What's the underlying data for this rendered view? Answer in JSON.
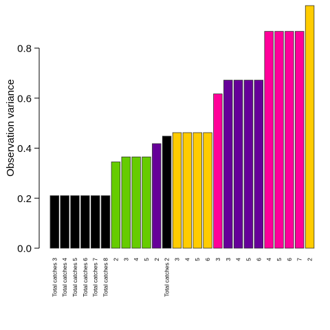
{
  "chart_data": {
    "type": "bar",
    "title": "",
    "xlabel": "",
    "ylabel": "Observation variance",
    "ylim": [
      0,
      0.97
    ],
    "yticks": [
      "0.0",
      "0.2",
      "0.4",
      "0.6",
      "0.8"
    ],
    "ytick_values": [
      0,
      0.2,
      0.4,
      0.6,
      0.8
    ],
    "grid": false,
    "categories": [
      "Total catches 3",
      "Total catches 4",
      "Total catches 5",
      "Total catches 6",
      "Total catches 7",
      "Total catches 8",
      "2",
      "3",
      "4",
      "5",
      "2",
      "Total catches 2",
      "3",
      "4",
      "5",
      "6",
      "3",
      "3",
      "4",
      "5",
      "6",
      "4",
      "5",
      "6",
      "7",
      "2"
    ],
    "values": [
      0.21,
      0.21,
      0.21,
      0.21,
      0.21,
      0.21,
      0.345,
      0.365,
      0.365,
      0.365,
      0.418,
      0.448,
      0.462,
      0.462,
      0.462,
      0.462,
      0.617,
      0.672,
      0.672,
      0.672,
      0.672,
      0.867,
      0.867,
      0.867,
      0.867,
      0.97
    ],
    "bar_colors": [
      "#000000",
      "#000000",
      "#000000",
      "#000000",
      "#000000",
      "#000000",
      "#66cc00",
      "#66cc00",
      "#66cc00",
      "#66cc00",
      "#660099",
      "#000000",
      "#ffcc00",
      "#ffcc00",
      "#ffcc00",
      "#ffcc00",
      "#ff0099",
      "#660099",
      "#660099",
      "#660099",
      "#660099",
      "#ff0099",
      "#ff0099",
      "#ff0099",
      "#ff0099",
      "#ffcc00"
    ]
  }
}
